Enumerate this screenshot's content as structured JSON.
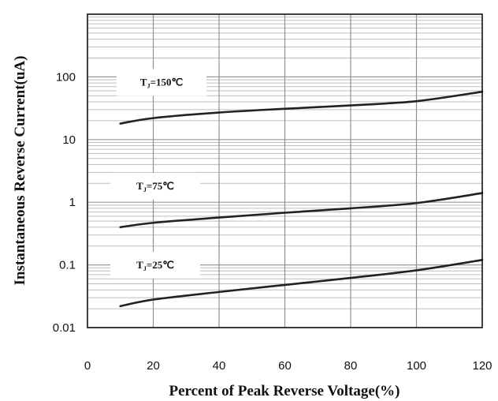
{
  "chart_data": {
    "type": "line",
    "title": "",
    "xlabel": "Percent of Peak Reverse Voltage(%)",
    "ylabel": "Instantaneous Reverse Current(uA)",
    "xlim": [
      0,
      120
    ],
    "ylim": [
      0.01,
      1000
    ],
    "yscale": "log",
    "grid": true,
    "x_ticks": [
      "0",
      "20",
      "40",
      "60",
      "80",
      "100",
      "120"
    ],
    "y_ticks": [
      "0.01",
      "0.1",
      "1",
      "10",
      "100"
    ],
    "series": [
      {
        "name": "TJ=150℃",
        "label_main": "T",
        "label_sub": "J",
        "label_rest": "=150℃",
        "x": [
          10,
          20,
          40,
          60,
          80,
          100,
          120
        ],
        "y": [
          18,
          22,
          27,
          31,
          35,
          41,
          58
        ]
      },
      {
        "name": "TJ=75℃",
        "label_main": "T",
        "label_sub": "J",
        "label_rest": "=75℃",
        "x": [
          10,
          20,
          40,
          60,
          80,
          100,
          120
        ],
        "y": [
          0.4,
          0.47,
          0.57,
          0.68,
          0.8,
          0.97,
          1.4
        ]
      },
      {
        "name": "TJ=25℃",
        "label_main": "T",
        "label_sub": "J",
        "label_rest": "=25℃",
        "x": [
          10,
          20,
          40,
          60,
          80,
          100,
          120
        ],
        "y": [
          0.022,
          0.028,
          0.037,
          0.048,
          0.062,
          0.082,
          0.12
        ]
      }
    ]
  }
}
